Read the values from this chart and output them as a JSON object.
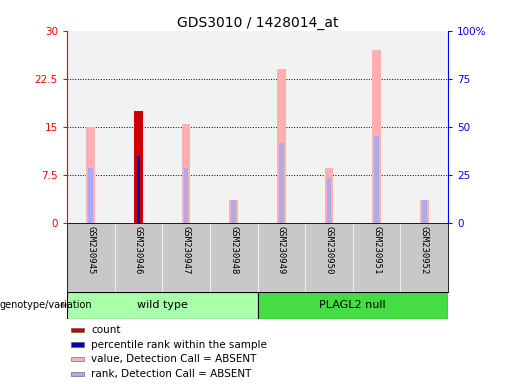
{
  "title": "GDS3010 / 1428014_at",
  "samples": [
    "GSM230945",
    "GSM230946",
    "GSM230947",
    "GSM230948",
    "GSM230949",
    "GSM230950",
    "GSM230951",
    "GSM230952"
  ],
  "ylim_left": [
    0,
    30
  ],
  "ylim_right": [
    0,
    100
  ],
  "yticks_left": [
    0,
    7.5,
    15,
    22.5,
    30
  ],
  "ytick_labels_left": [
    "0",
    "7.5",
    "15",
    "22.5",
    "30"
  ],
  "yticks_right": [
    0,
    25,
    50,
    75,
    100
  ],
  "ytick_labels_right": [
    "0",
    "25",
    "50",
    "75",
    "100%"
  ],
  "pink_bar_values": [
    15.0,
    17.5,
    15.5,
    3.5,
    24.0,
    8.5,
    27.0,
    3.5
  ],
  "blue_bar_values": [
    8.5,
    10.5,
    8.5,
    3.5,
    12.5,
    7.0,
    13.5,
    3.5
  ],
  "red_bar_value": 17.5,
  "red_bar_index": 1,
  "dark_blue_bar_value": 10.5,
  "dark_blue_bar_index": 1,
  "pink_color": "#ffb0b0",
  "light_blue_color": "#aaaaee",
  "red_color": "#cc0000",
  "dark_blue_color": "#0000bb",
  "bg_plot": "#f2f2f2",
  "bg_samples": "#c8c8c8",
  "wt_color": "#aaffaa",
  "pn_color": "#44dd44",
  "grid_dotted_vals": [
    7.5,
    15,
    22.5
  ],
  "wt_label": "wild type",
  "pn_label": "PLAGL2 null",
  "geno_label": "genotype/variation",
  "legend_items": [
    {
      "label": "count",
      "color": "#cc0000"
    },
    {
      "label": "percentile rank within the sample",
      "color": "#0000bb"
    },
    {
      "label": "value, Detection Call = ABSENT",
      "color": "#ffb0b0"
    },
    {
      "label": "rank, Detection Call = ABSENT",
      "color": "#aaaaee"
    }
  ]
}
